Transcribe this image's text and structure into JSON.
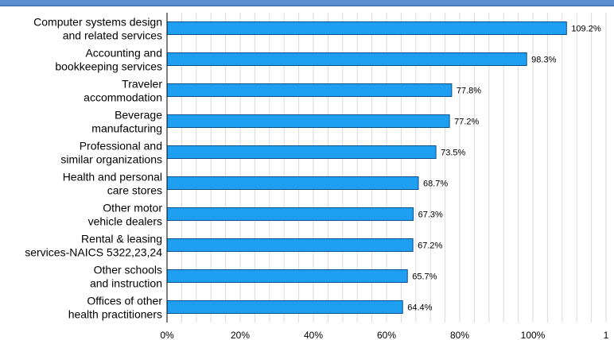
{
  "chart_data": {
    "type": "bar",
    "orientation": "horizontal",
    "categories": [
      [
        "Computer systems design",
        "and related services"
      ],
      [
        "Accounting and",
        "bookkeeping services"
      ],
      [
        "Traveler",
        "accommodation"
      ],
      [
        "Beverage",
        "manufacturing"
      ],
      [
        "Professional and",
        "similar organizations"
      ],
      [
        "Health and personal",
        "care stores"
      ],
      [
        "Other motor",
        "vehicle dealers"
      ],
      [
        "Rental & leasing",
        "services-NAICS 5322,23,24"
      ],
      [
        "Other schools",
        "and instruction"
      ],
      [
        "Offices of other",
        "health practitioners"
      ]
    ],
    "values": [
      109.2,
      98.3,
      77.8,
      77.2,
      73.5,
      68.7,
      67.3,
      67.2,
      65.7,
      64.4
    ],
    "value_labels": [
      "109.2%",
      "98.3%",
      "77.8%",
      "77.2%",
      "73.5%",
      "68.7%",
      "67.3%",
      "67.2%",
      "65.7%",
      "64.4%"
    ],
    "xticks": [
      "0%",
      "20%",
      "40%",
      "60%",
      "80%",
      "100%",
      "1"
    ],
    "xlim": [
      0,
      120
    ],
    "grid": "vertical minor gridlines",
    "colors": {
      "bar": "#1e9ff2",
      "bar_edge": "#0a4f8c",
      "grid": "#d9d9d9",
      "axis": "#000000",
      "top_bar": "#5a8ed0"
    }
  }
}
